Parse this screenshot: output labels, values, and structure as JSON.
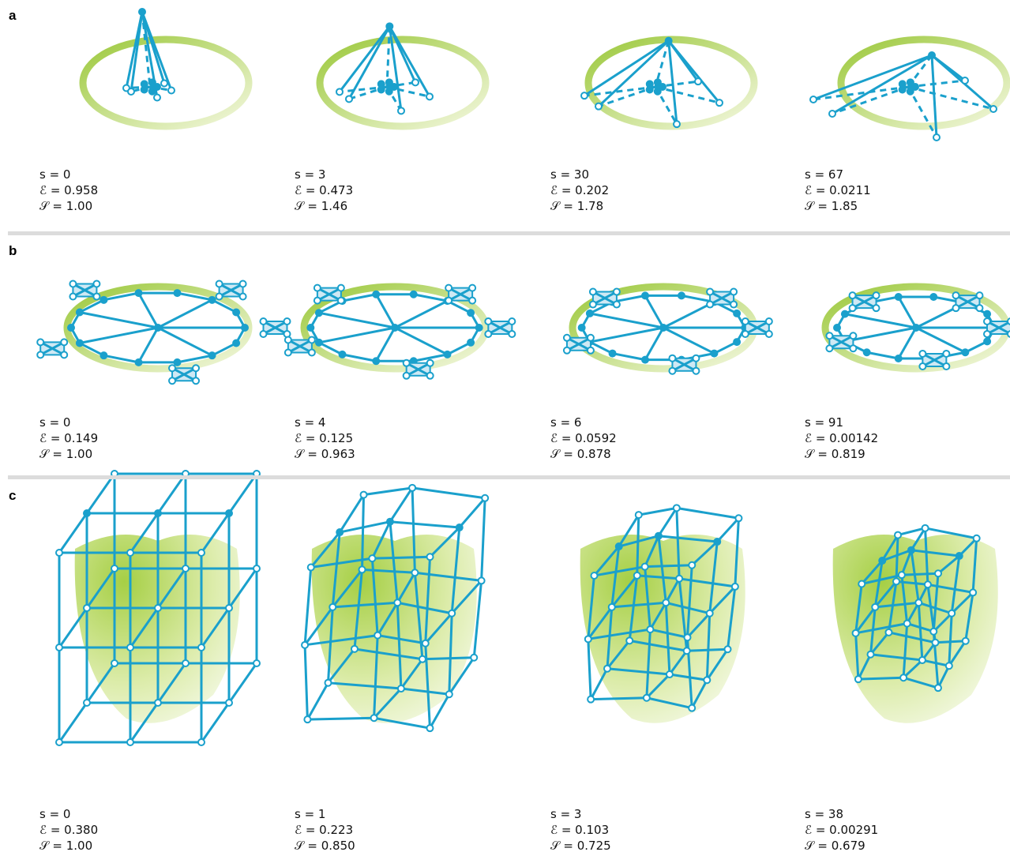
{
  "panels": [
    {
      "label": "a",
      "frames": [
        {
          "lines": [
            "s = 0",
            "ℰ = 0.958",
            "𝒮 = 1.00"
          ]
        },
        {
          "lines": [
            "s = 3",
            "ℰ = 0.473",
            "𝒮 = 1.46"
          ]
        },
        {
          "lines": [
            "s = 30",
            "ℰ = 0.202",
            "𝒮 = 1.78"
          ]
        },
        {
          "lines": [
            "s = 67",
            "ℰ = 0.0211",
            "𝒮 = 1.85"
          ]
        }
      ]
    },
    {
      "label": "b",
      "frames": [
        {
          "lines": [
            "s = 0",
            "ℰ = 0.149",
            "𝒮 = 1.00"
          ]
        },
        {
          "lines": [
            "s = 4",
            "ℰ = 0.125",
            "𝒮 = 0.963"
          ]
        },
        {
          "lines": [
            "s = 6",
            "ℰ = 0.0592",
            "𝒮 = 0.878"
          ]
        },
        {
          "lines": [
            "s = 91",
            "ℰ = 0.00142",
            "𝒮 = 0.819"
          ]
        }
      ]
    },
    {
      "label": "c",
      "frames": [
        {
          "lines": [
            "s = 0",
            "ℰ = 0.380",
            "𝒮 = 1.00"
          ]
        },
        {
          "lines": [
            "s = 1",
            "ℰ = 0.223",
            "𝒮 = 0.850"
          ]
        },
        {
          "lines": [
            "s = 3",
            "ℰ = 0.103",
            "𝒮 = 0.725"
          ]
        },
        {
          "lines": [
            "s = 38",
            "ℰ = 0.00291",
            "𝒮 = 0.679"
          ]
        }
      ]
    }
  ]
}
